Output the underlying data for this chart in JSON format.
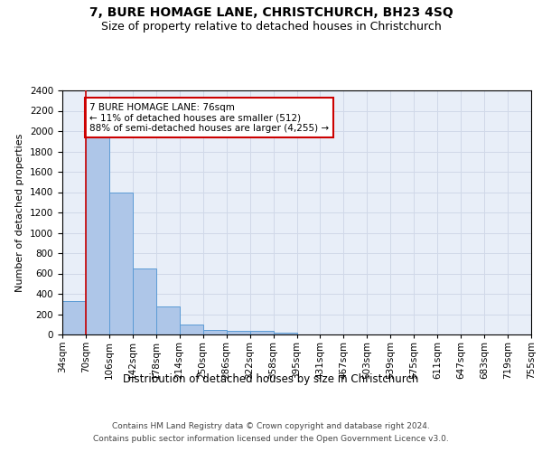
{
  "title": "7, BURE HOMAGE LANE, CHRISTCHURCH, BH23 4SQ",
  "subtitle": "Size of property relative to detached houses in Christchurch",
  "xlabel": "Distribution of detached houses by size in Christchurch",
  "ylabel": "Number of detached properties",
  "bar_values": [
    325,
    1960,
    1400,
    650,
    275,
    100,
    48,
    40,
    35,
    22,
    0,
    0,
    0,
    0,
    0,
    0,
    0,
    0,
    0,
    0
  ],
  "x_labels": [
    "34sqm",
    "70sqm",
    "106sqm",
    "142sqm",
    "178sqm",
    "214sqm",
    "250sqm",
    "286sqm",
    "322sqm",
    "358sqm",
    "395sqm",
    "431sqm",
    "467sqm",
    "503sqm",
    "539sqm",
    "575sqm",
    "611sqm",
    "647sqm",
    "683sqm",
    "719sqm",
    "755sqm"
  ],
  "bar_color": "#aec6e8",
  "bar_edge_color": "#5b9bd5",
  "property_line_x": 1,
  "property_line_color": "#cc0000",
  "annotation_text": "7 BURE HOMAGE LANE: 76sqm\n← 11% of detached houses are smaller (512)\n88% of semi-detached houses are larger (4,255) →",
  "annotation_box_color": "#cc0000",
  "ylim": [
    0,
    2400
  ],
  "yticks": [
    0,
    200,
    400,
    600,
    800,
    1000,
    1200,
    1400,
    1600,
    1800,
    2000,
    2200,
    2400
  ],
  "grid_color": "#d0d8e8",
  "background_color": "#e8eef8",
  "footer_line1": "Contains HM Land Registry data © Crown copyright and database right 2024.",
  "footer_line2": "Contains public sector information licensed under the Open Government Licence v3.0.",
  "title_fontsize": 10,
  "subtitle_fontsize": 9,
  "ylabel_fontsize": 8,
  "xlabel_fontsize": 8.5,
  "tick_fontsize": 7.5,
  "annotation_fontsize": 7.5,
  "footer_fontsize": 6.5
}
